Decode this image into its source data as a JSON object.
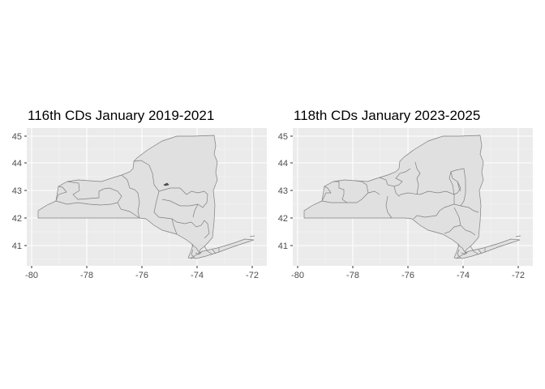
{
  "panels": [
    {
      "title": "116th CDs January 2019-2021",
      "x_ticks": [
        "-80",
        "-78",
        "-76",
        "-74",
        "-72"
      ],
      "y_ticks": [
        "45",
        "44",
        "43",
        "42",
        "41"
      ]
    },
    {
      "title": "118th CDs January 2023-2025",
      "x_ticks": [
        "-80",
        "-78",
        "-76",
        "-74",
        "-72"
      ],
      "y_ticks": [
        "45",
        "44",
        "43",
        "42",
        "41"
      ]
    }
  ],
  "colors": {
    "panel_background": "#ebebeb",
    "gridline": "#ffffff",
    "district_fill": "#e0e0e0",
    "district_border": "#7f7f7f"
  },
  "chart_data": [
    {
      "type": "map",
      "title": "116th CDs January 2019-2021",
      "xlim": [
        -80,
        -72
      ],
      "ylim": [
        41,
        45
      ],
      "grid": true
    },
    {
      "type": "map",
      "title": "118th CDs January 2023-2025",
      "xlim": [
        -80,
        -72
      ],
      "ylim": [
        41,
        45
      ],
      "grid": true
    }
  ]
}
